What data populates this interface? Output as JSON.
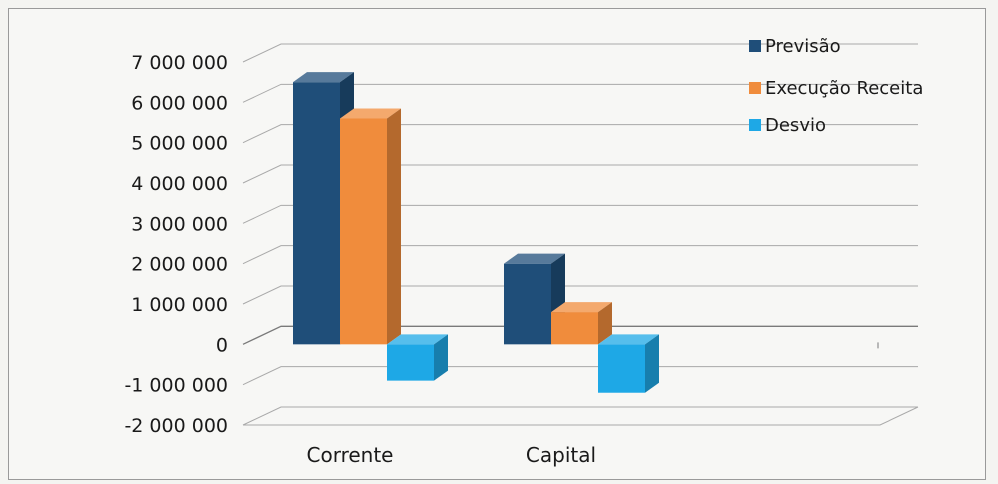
{
  "chart_data": {
    "type": "bar",
    "categories": [
      "Corrente",
      "Capital"
    ],
    "series": [
      {
        "name": "Previsão",
        "values": [
          6500000,
          2000000
        ],
        "color": "#1f4e79"
      },
      {
        "name": "Execução Receita",
        "values": [
          5600000,
          800000
        ],
        "color": "#f08c3c"
      },
      {
        "name": "Desvio",
        "values": [
          -900000,
          -1200000
        ],
        "color": "#1ea8e6"
      }
    ],
    "ylim": [
      -2000000,
      7000000
    ],
    "y_ticks": [
      "7 000 000",
      "6 000 000",
      "5 000 000",
      "4 000 000",
      "3 000 000",
      "2 000 000",
      "1 000 000",
      "0",
      "-1 000 000",
      "-2 000 000"
    ],
    "grid": true,
    "legend_position": "top-right",
    "style": "3d-clustered-column"
  }
}
